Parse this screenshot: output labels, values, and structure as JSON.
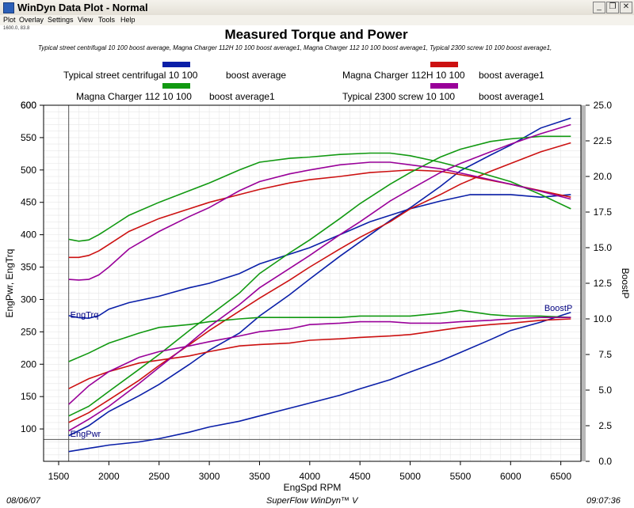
{
  "window": {
    "title": "WinDyn Data Plot - Normal",
    "minimize_icon": "minimize-icon",
    "restore_icon": "restore-icon",
    "close_icon": "close-icon"
  },
  "menu": [
    "Plot",
    "Overlay",
    "Settings",
    "View",
    "Tools",
    "Help"
  ],
  "coord_readout": "1600.0, 83.8",
  "subtitle_runs": "Typical street centrifugal 10 100        boost average, Magna Charger 112H 10 100  boost average1, Magna Charger 112 10 100        boost average1, Typical 2300 screw 10 100        boost average1,",
  "footer": {
    "date": "08/06/07",
    "product": "SuperFlow WinDyn™ V",
    "time": "09:07:36"
  },
  "chart_data": {
    "type": "line",
    "title": "Measured Torque and Power",
    "xlabel": "EngSpd  RPM",
    "ylabel": "EngPwr, EngTrq",
    "y2label": "BoostP",
    "xlim": [
      1350,
      6700
    ],
    "ylim": [
      50,
      600
    ],
    "y2lim": [
      0,
      25
    ],
    "x_ticks": [
      1500,
      2000,
      2500,
      3000,
      3500,
      4000,
      4500,
      5000,
      5500,
      6000,
      6500
    ],
    "y_ticks": [
      100,
      150,
      200,
      250,
      300,
      350,
      400,
      450,
      500,
      550,
      600
    ],
    "y2_ticks": [
      "0.0",
      "2.5",
      "5.0",
      "7.5",
      "10.0",
      "12.5",
      "15.0",
      "17.5",
      "20.0",
      "22.5",
      "25.0"
    ],
    "grid": true,
    "vertical_marker_x": 1600,
    "horizontal_marker_y": 83.8,
    "curve_labels": [
      {
        "text": "EngTrq",
        "x": 1600,
        "y": 277,
        "color": "#000080"
      },
      {
        "text": "EngPwr",
        "x": 1600,
        "y": 93,
        "color": "#000080"
      },
      {
        "text": "BoostP",
        "x": 6320,
        "y": 287,
        "color": "#000080"
      }
    ],
    "legend": [
      {
        "name": "Typical street centrifugal 10 100",
        "suffix": "boost average",
        "color": "#0a1fa8"
      },
      {
        "name": "Magna Charger 112H 10 100",
        "suffix": "boost average1",
        "color": "#cc1111"
      },
      {
        "name": "Magna Charger 112 10 100",
        "suffix": "boost average1",
        "color": "#119911"
      },
      {
        "name": "Typical 2300 screw 10 100",
        "suffix": "boost average1",
        "color": "#990099"
      }
    ],
    "series": [
      {
        "name": "Typical street centrifugal 10 100",
        "quantity": "EngTrq",
        "color": "#0a1fa8",
        "x": [
          1600,
          1700,
          1800,
          1900,
          2000,
          2200,
          2500,
          2800,
          3000,
          3300,
          3500,
          3800,
          4000,
          4300,
          4600,
          5000,
          5300,
          5600,
          6000,
          6300,
          6600
        ],
        "y": [
          275,
          272,
          271,
          275,
          285,
          295,
          305,
          318,
          325,
          340,
          355,
          370,
          380,
          400,
          420,
          440,
          452,
          462,
          462,
          458,
          462
        ]
      },
      {
        "name": "Typical street centrifugal 10 100",
        "quantity": "EngPwr",
        "color": "#0a1fa8",
        "x": [
          1600,
          1800,
          2000,
          2300,
          2500,
          2800,
          3000,
          3300,
          3500,
          3800,
          4000,
          4300,
          4500,
          4800,
          5000,
          5300,
          5500,
          5800,
          6000,
          6300,
          6600
        ],
        "y": [
          65,
          70,
          75,
          80,
          85,
          95,
          103,
          112,
          120,
          132,
          140,
          152,
          162,
          176,
          188,
          205,
          218,
          238,
          252,
          265,
          280
        ]
      },
      {
        "name": "Typical street centrifugal 10 100",
        "quantity": "BoostP",
        "color": "#0a1fa8",
        "x": [
          1600,
          1800,
          2000,
          2300,
          2500,
          2800,
          3000,
          3300,
          3500,
          3800,
          4000,
          4300,
          4500,
          4800,
          5000,
          5300,
          5500,
          5800,
          6000,
          6300,
          6600
        ],
        "y": [
          1.8,
          2.5,
          3.5,
          4.6,
          5.4,
          6.8,
          7.8,
          9.0,
          10.2,
          11.7,
          12.8,
          14.4,
          15.4,
          16.9,
          17.8,
          19.3,
          20.4,
          21.5,
          22.2,
          23.4,
          24.1
        ]
      },
      {
        "name": "Magna Charger 112H 10 100",
        "quantity": "EngTrq",
        "color": "#cc1111",
        "x": [
          1600,
          1700,
          1800,
          1900,
          2000,
          2200,
          2500,
          2800,
          3000,
          3300,
          3500,
          3800,
          4000,
          4300,
          4600,
          4800,
          5000,
          5300,
          5600,
          6000,
          6300,
          6600
        ],
        "y": [
          365,
          365,
          368,
          375,
          385,
          405,
          425,
          440,
          450,
          462,
          470,
          480,
          485,
          490,
          496,
          498,
          500,
          498,
          490,
          478,
          468,
          458
        ]
      },
      {
        "name": "Magna Charger 112H 10 100",
        "quantity": "EngPwr",
        "color": "#cc1111",
        "x": [
          1600,
          1800,
          2000,
          2300,
          2500,
          2800,
          3000,
          3300,
          3500,
          3800,
          4000,
          4300,
          4500,
          4800,
          5000,
          5300,
          5500,
          5800,
          6000,
          6300,
          6600
        ],
        "y": [
          110,
          125,
          145,
          175,
          198,
          230,
          252,
          282,
          302,
          330,
          350,
          378,
          396,
          420,
          440,
          462,
          478,
          498,
          510,
          528,
          542
        ]
      },
      {
        "name": "Magna Charger 112H 10 100",
        "quantity": "BoostP",
        "color": "#cc1111",
        "x": [
          1600,
          1800,
          2000,
          2300,
          2500,
          2800,
          3000,
          3300,
          3500,
          3800,
          4000,
          4300,
          4500,
          4800,
          5000,
          5300,
          5500,
          5800,
          6000,
          6300,
          6600
        ],
        "y": [
          5.1,
          5.8,
          6.3,
          6.9,
          7.1,
          7.4,
          7.7,
          8.1,
          8.2,
          8.3,
          8.5,
          8.6,
          8.7,
          8.8,
          8.9,
          9.2,
          9.4,
          9.6,
          9.7,
          9.9,
          10.0
        ]
      },
      {
        "name": "Magna Charger 112 10 100",
        "quantity": "EngTrq",
        "color": "#119911",
        "x": [
          1600,
          1700,
          1800,
          1900,
          2000,
          2200,
          2500,
          2800,
          3000,
          3300,
          3500,
          3800,
          4000,
          4300,
          4600,
          4800,
          5000,
          5300,
          5600,
          6000,
          6300,
          6600
        ],
        "y": [
          393,
          390,
          392,
          400,
          410,
          430,
          450,
          468,
          480,
          500,
          512,
          518,
          520,
          524,
          526,
          526,
          522,
          512,
          500,
          482,
          462,
          440
        ]
      },
      {
        "name": "Magna Charger 112 10 100",
        "quantity": "EngPwr",
        "color": "#119911",
        "x": [
          1600,
          1800,
          2000,
          2300,
          2500,
          2800,
          3000,
          3300,
          3500,
          3800,
          4000,
          4300,
          4500,
          4800,
          5000,
          5300,
          5500,
          5800,
          6000,
          6300,
          6600
        ],
        "y": [
          120,
          135,
          158,
          192,
          215,
          252,
          275,
          310,
          340,
          372,
          392,
          425,
          448,
          478,
          496,
          520,
          532,
          544,
          548,
          552,
          552
        ]
      },
      {
        "name": "Magna Charger 112 10 100",
        "quantity": "BoostP",
        "color": "#119911",
        "x": [
          1600,
          1800,
          2000,
          2300,
          2500,
          2800,
          3000,
          3300,
          3500,
          3800,
          4000,
          4300,
          4500,
          4800,
          5000,
          5300,
          5500,
          5800,
          6000,
          6300,
          6600
        ],
        "y": [
          7.0,
          7.6,
          8.3,
          9.0,
          9.4,
          9.6,
          9.8,
          10.0,
          10.1,
          10.1,
          10.1,
          10.1,
          10.2,
          10.2,
          10.2,
          10.4,
          10.6,
          10.3,
          10.2,
          10.2,
          10.1
        ]
      },
      {
        "name": "Typical 2300 screw 10 100",
        "quantity": "EngTrq",
        "color": "#990099",
        "x": [
          1600,
          1700,
          1800,
          1900,
          2000,
          2200,
          2500,
          2800,
          3000,
          3300,
          3500,
          3800,
          4000,
          4300,
          4600,
          4800,
          5000,
          5300,
          5600,
          6000,
          6300,
          6600
        ],
        "y": [
          331,
          330,
          331,
          338,
          350,
          378,
          405,
          428,
          442,
          468,
          482,
          494,
          500,
          508,
          512,
          512,
          508,
          502,
          492,
          478,
          467,
          455
        ]
      },
      {
        "name": "Typical 2300 screw 10 100",
        "quantity": "EngPwr",
        "color": "#990099",
        "x": [
          1600,
          1800,
          2000,
          2300,
          2500,
          2800,
          3000,
          3300,
          3500,
          3800,
          4000,
          4300,
          4500,
          4800,
          5000,
          5300,
          5500,
          5800,
          6000,
          6300,
          6600
        ],
        "y": [
          97,
          115,
          135,
          170,
          195,
          232,
          258,
          292,
          318,
          348,
          368,
          400,
          420,
          452,
          470,
          496,
          510,
          528,
          540,
          556,
          570
        ]
      },
      {
        "name": "Typical 2300 screw 10 100",
        "quantity": "BoostP",
        "color": "#990099",
        "x": [
          1600,
          1800,
          2000,
          2300,
          2500,
          2800,
          3000,
          3300,
          3500,
          3800,
          4000,
          4300,
          4500,
          4800,
          5000,
          5300,
          5500,
          5800,
          6000,
          6300,
          6600
        ],
        "y": [
          4.0,
          5.3,
          6.3,
          7.3,
          7.7,
          8.1,
          8.4,
          8.8,
          9.1,
          9.3,
          9.6,
          9.7,
          9.8,
          9.8,
          9.7,
          9.7,
          9.8,
          9.9,
          10.0,
          10.1,
          10.1
        ]
      }
    ]
  }
}
